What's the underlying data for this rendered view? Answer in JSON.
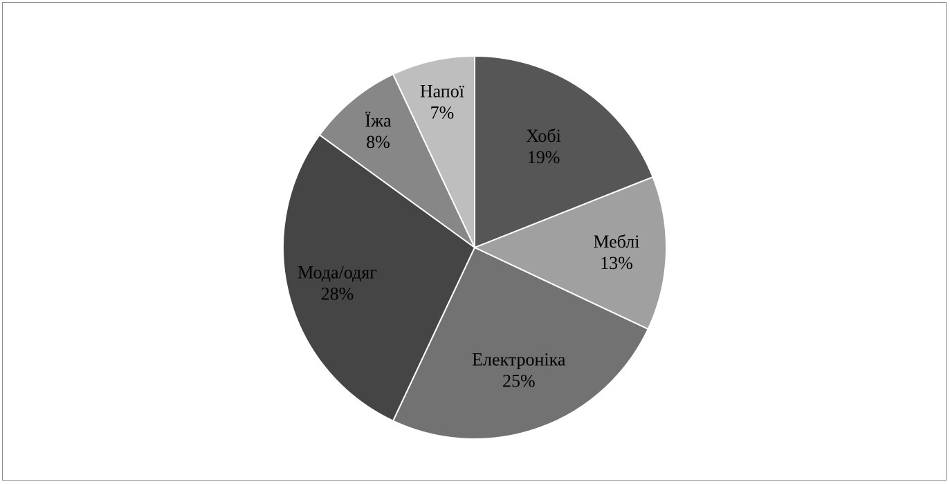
{
  "chart_data": {
    "type": "pie",
    "title": "",
    "start_angle_deg": 0,
    "direction": "clockwise",
    "slices": [
      {
        "label": "Хобі",
        "value": 19,
        "value_label": "19%",
        "color": "#565656"
      },
      {
        "label": "Меблі",
        "value": 13,
        "value_label": "13%",
        "color": "#a0a0a0"
      },
      {
        "label": "Електроніка",
        "value": 25,
        "value_label": "25%",
        "color": "#727272"
      },
      {
        "label": "Мода/одяг",
        "value": 28,
        "value_label": "28%",
        "color": "#454545"
      },
      {
        "label": "Їжа",
        "value": 8,
        "value_label": "8%",
        "color": "#878787"
      },
      {
        "label": "Напої",
        "value": 7,
        "value_label": "7%",
        "color": "#bebebe"
      }
    ],
    "legend": "none",
    "data_labels": "category name and percentage inside slices"
  }
}
